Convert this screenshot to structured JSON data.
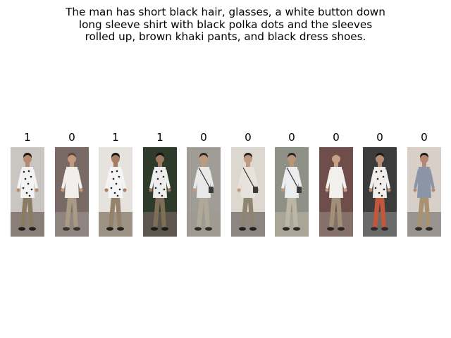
{
  "caption": {
    "lines": [
      "The man has short black hair, glasses, a white button down",
      "long sleeve shirt with black polka dots and the sleeves",
      "rolled up, brown khaki pants, and black dress shoes."
    ]
  },
  "gallery": [
    {
      "label": "1",
      "bg": "#c9c6c2",
      "ground": "#8a7f78",
      "skin": "#b58a6e",
      "hair": "#1a1a1a",
      "shirt": "#f3f3f3",
      "pants": "#8c7b63",
      "shoes": "#1e1e1e",
      "dots": true,
      "bag": false
    },
    {
      "label": "0",
      "bg": "#7a6a66",
      "ground": "#8e8580",
      "skin": "#c49a7e",
      "hair": "#5a4a3e",
      "shirt": "#f1efec",
      "pants": "#a89a84",
      "shoes": "#3a3330",
      "dots": false,
      "bag": false
    },
    {
      "label": "1",
      "bg": "#e6e3df",
      "ground": "#9c9384",
      "skin": "#a67c62",
      "hair": "#151515",
      "shirt": "#f5f5f5",
      "pants": "#94826a",
      "shoes": "#222222",
      "dots": true,
      "bag": false
    },
    {
      "label": "1",
      "bg": "#2e3a2a",
      "ground": "#5c564e",
      "skin": "#a07a60",
      "hair": "#121212",
      "shirt": "#eeeeee",
      "pants": "#7e6e56",
      "shoes": "#1b1b1b",
      "dots": true,
      "bag": false
    },
    {
      "label": "0",
      "bg": "#a09d97",
      "ground": "#9f9a92",
      "skin": "#c0997f",
      "hair": "#2a2a2a",
      "shirt": "#e9e9ea",
      "pants": "#b0a898",
      "shoes": "#2c2c2c",
      "dots": false,
      "bag": true
    },
    {
      "label": "0",
      "bg": "#dcd8d0",
      "ground": "#8b8780",
      "skin": "#c09a80",
      "hair": "#222222",
      "shirt": "#e7e3dc",
      "pants": "#8f8472",
      "shoes": "#202020",
      "dots": false,
      "bag": true
    },
    {
      "label": "0",
      "bg": "#8f9186",
      "ground": "#a9a597",
      "skin": "#bb947a",
      "hair": "#262626",
      "shirt": "#ecedee",
      "pants": "#bdb6a4",
      "shoes": "#2a2a2a",
      "dots": false,
      "bag": true
    },
    {
      "label": "0",
      "bg": "#6e4d4a",
      "ground": "#85716a",
      "skin": "#c8a086",
      "hair": "#6b5646",
      "shirt": "#f2f0ed",
      "pants": "#a38f78",
      "shoes": "#2b2523",
      "dots": false,
      "bag": false
    },
    {
      "label": "0",
      "bg": "#3c3c3c",
      "ground": "#6a6a68",
      "skin": "#b88e72",
      "hair": "#181818",
      "shirt": "#f0efed",
      "pants": "#c2573c",
      "shoes": "#2a2a2a",
      "dots": true,
      "bag": false
    },
    {
      "label": "0",
      "bg": "#d8cfc8",
      "ground": "#9a9490",
      "skin": "#b38a70",
      "hair": "#1f1f1f",
      "shirt": "#8a96a8",
      "pants": "#a89272",
      "shoes": "#2a2a2a",
      "dots": false,
      "bag": false
    }
  ]
}
